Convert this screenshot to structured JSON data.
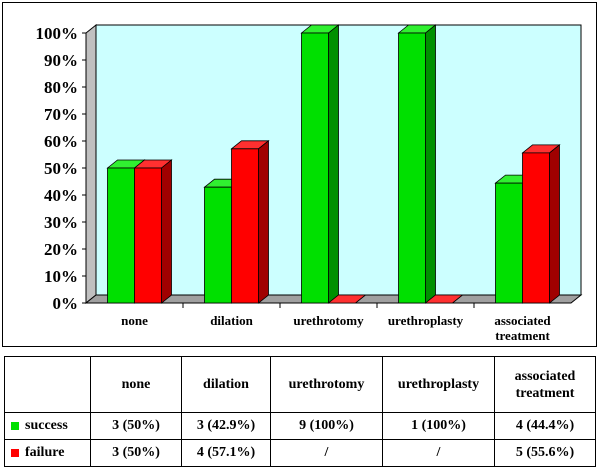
{
  "colors": {
    "success": "#00e000",
    "success_side": "#009000",
    "success_top": "#30f030",
    "failure": "#ff0000",
    "failure_side": "#a00000",
    "failure_top": "#ff3030",
    "plot_bg": "#ccffff",
    "floor": "#a0a0a0"
  },
  "chart_data": {
    "type": "bar",
    "categories": [
      "none",
      "dilation",
      "urethrotomy",
      "urethroplasty",
      "associated\ntreatment"
    ],
    "series": [
      {
        "name": "success",
        "values": [
          50,
          42.9,
          100,
          100,
          44.4
        ]
      },
      {
        "name": "failure",
        "values": [
          50,
          57.1,
          0,
          0,
          55.6
        ]
      }
    ],
    "ylim": [
      0,
      100
    ],
    "yticks": [
      "0%",
      "10%",
      "20%",
      "30%",
      "40%",
      "50%",
      "60%",
      "70%",
      "80%",
      "90%",
      "100%"
    ],
    "grid": false,
    "legend": "table"
  },
  "table": {
    "headers": [
      "none",
      "dilation",
      "urethrotomy",
      "urethroplasty",
      "associated treatment"
    ],
    "rows": [
      {
        "label": "success",
        "cells": [
          "3 (50%)",
          "3 (42.9%)",
          "9 (100%)",
          "1 (100%)",
          "4 (44.4%)"
        ]
      },
      {
        "label": "failure",
        "cells": [
          "3 (50%)",
          "4 (57.1%)",
          "/",
          "/",
          "5 (55.6%)"
        ]
      }
    ]
  }
}
